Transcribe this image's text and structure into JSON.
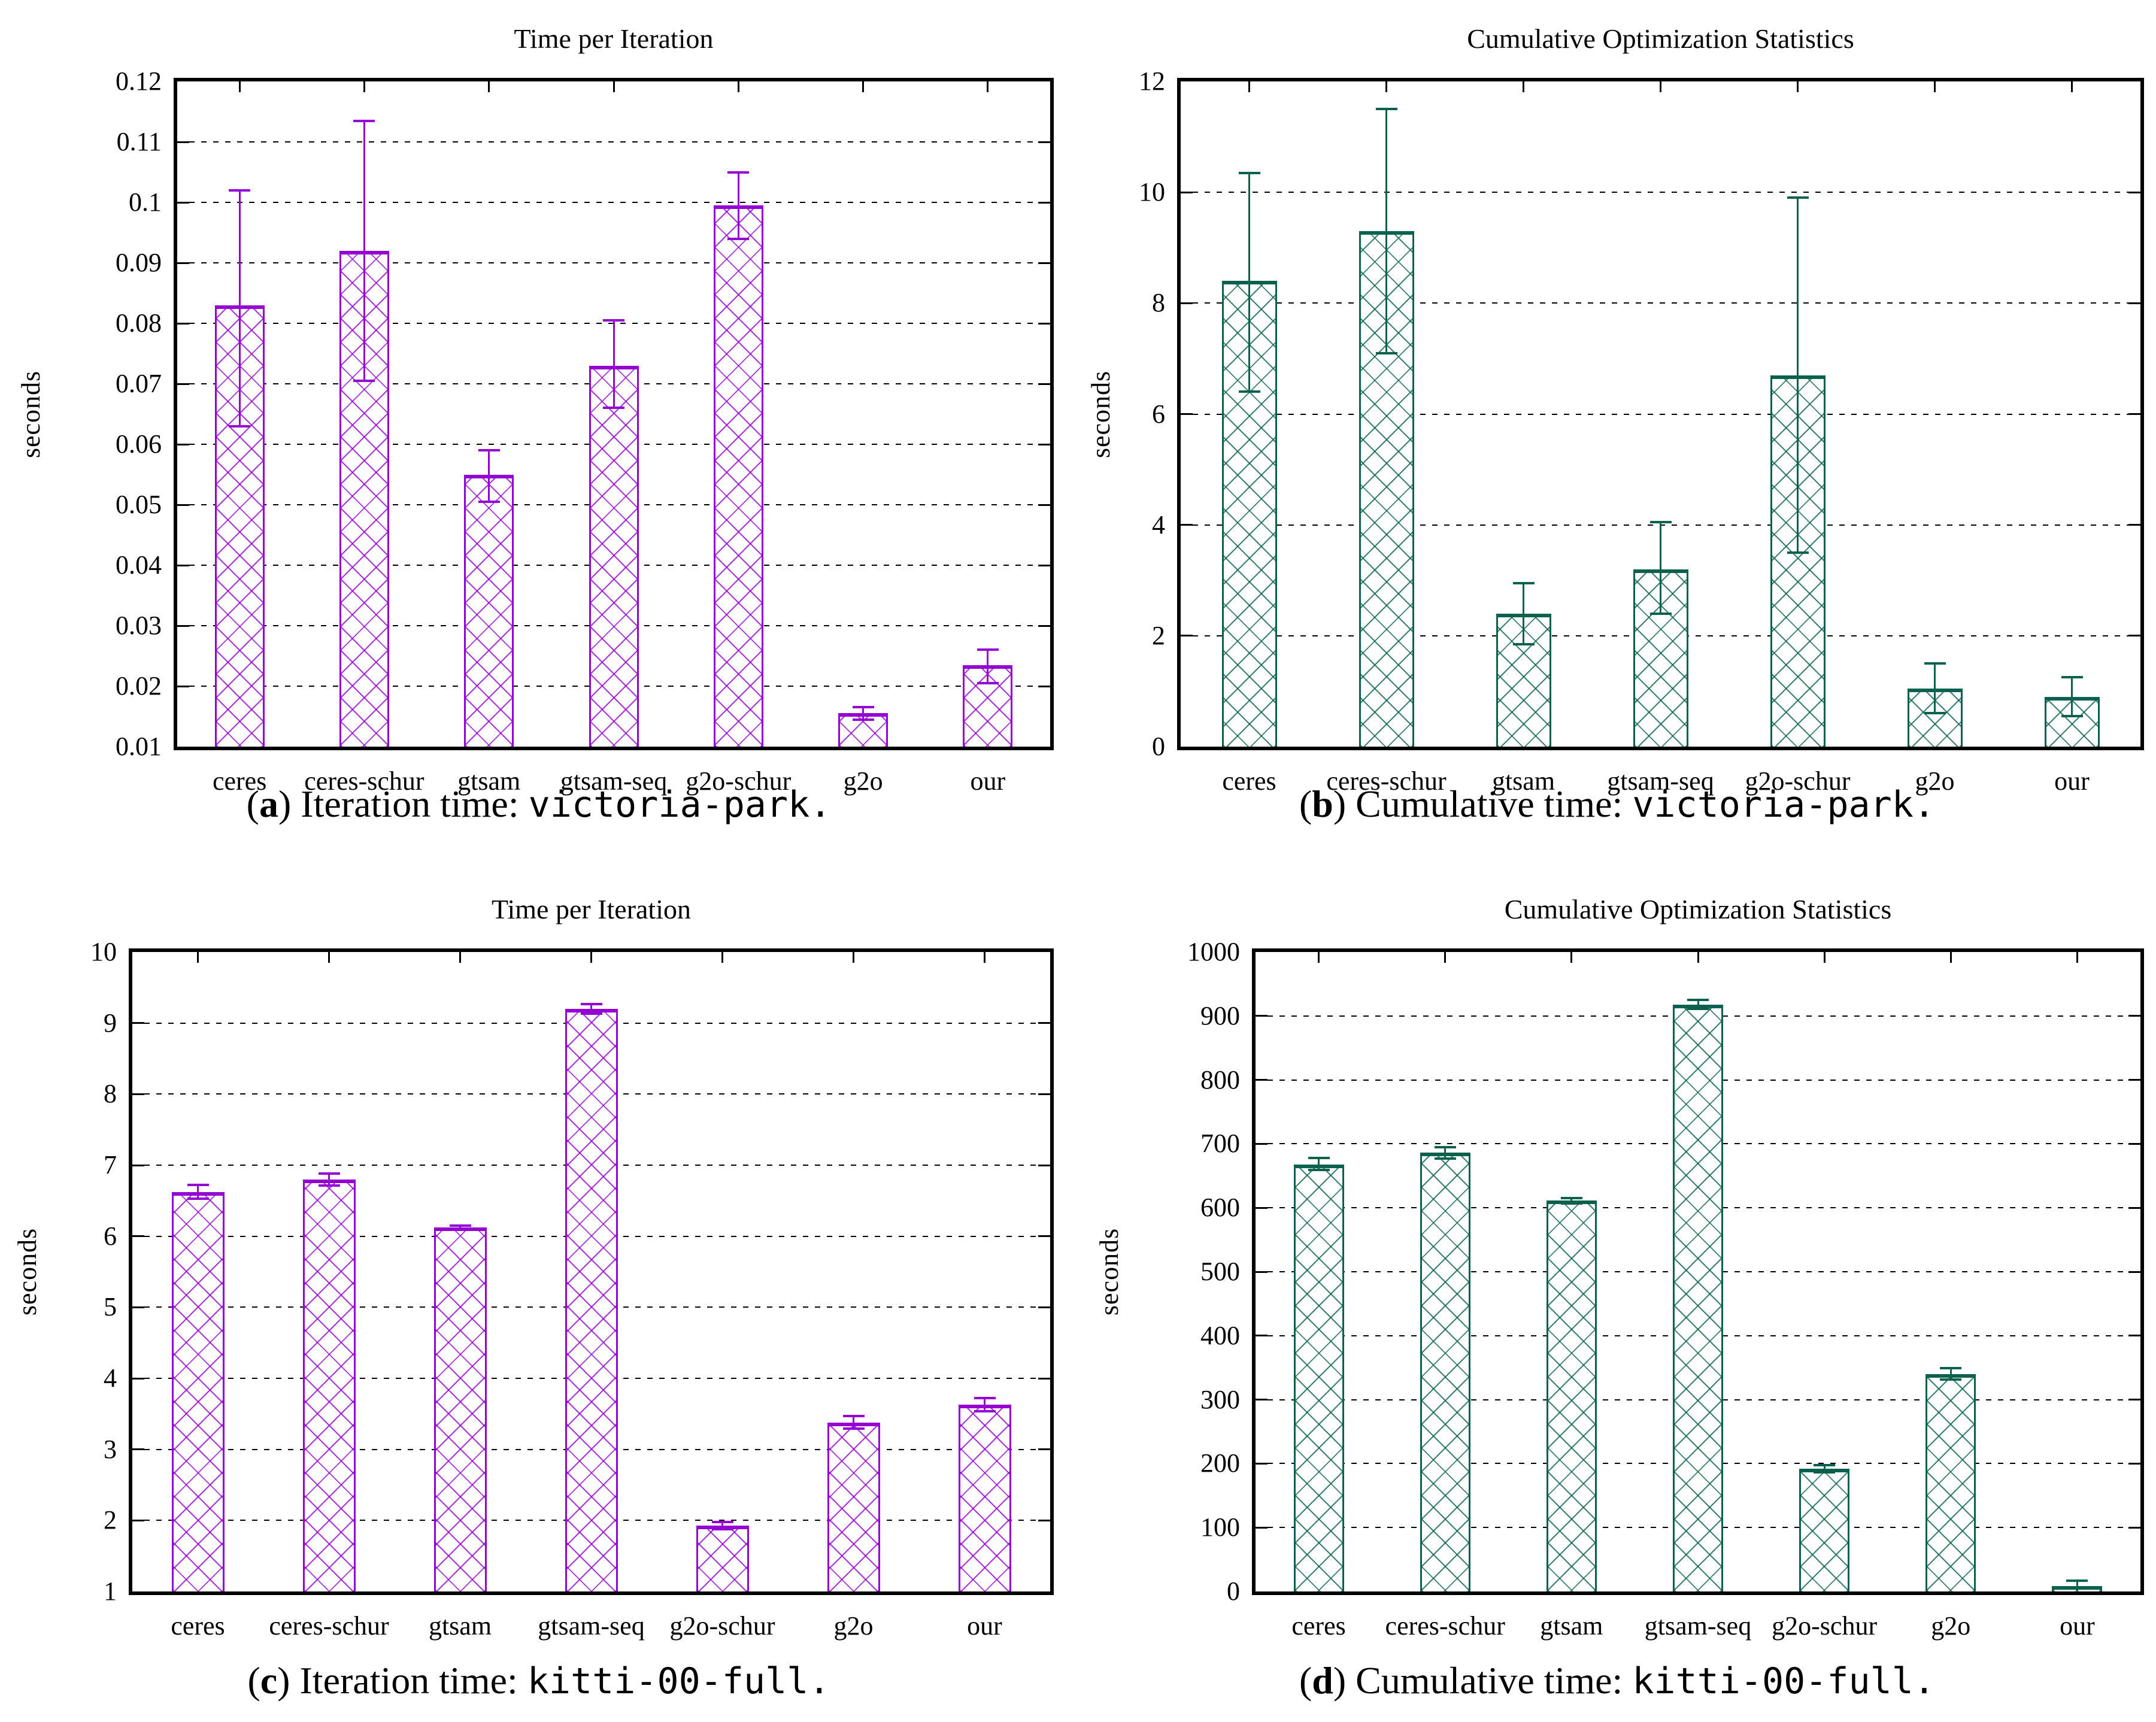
{
  "chart_data": [
    {
      "id": "a",
      "type": "bar",
      "title": "Time per Iteration",
      "ylabel": "seconds",
      "bar_color": "#9400D3",
      "ylim": [
        0.01,
        0.12
      ],
      "yticks": [
        0.01,
        0.02,
        0.03,
        0.04,
        0.05,
        0.06,
        0.07,
        0.08,
        0.09,
        0.1,
        0.11,
        0.12
      ],
      "ytick_labels": [
        "0.01",
        "0.02",
        "0.03",
        "0.04",
        "0.05",
        "0.06",
        "0.07",
        "0.08",
        "0.09",
        "0.1",
        "0.11",
        "0.12"
      ],
      "grid": true,
      "legend": "none",
      "categories": [
        "ceres",
        "ceres-schur",
        "gtsam",
        "gtsam-seq",
        "g2o-schur",
        "g2o",
        "our"
      ],
      "values": [
        0.083,
        0.092,
        0.055,
        0.073,
        0.0995,
        0.0155,
        0.0235
      ],
      "err_low": [
        0.063,
        0.0705,
        0.0505,
        0.066,
        0.094,
        0.0145,
        0.0205
      ],
      "err_high": [
        0.102,
        0.1135,
        0.059,
        0.0805,
        0.105,
        0.0165,
        0.026
      ],
      "caption": {
        "label": "a",
        "text": "Iteration time:",
        "dataset": "victoria-park."
      }
    },
    {
      "id": "b",
      "type": "bar",
      "title": "Cumulative Optimization Statistics",
      "ylabel": "seconds",
      "bar_color": "#0A614D",
      "ylim": [
        0,
        12
      ],
      "yticks": [
        0,
        2,
        4,
        6,
        8,
        10,
        12
      ],
      "ytick_labels": [
        "0",
        "2",
        "4",
        "6",
        "8",
        "10",
        "12"
      ],
      "grid": true,
      "legend": "none",
      "categories": [
        "ceres",
        "ceres-schur",
        "gtsam",
        "gtsam-seq",
        "g2o-schur",
        "g2o",
        "our"
      ],
      "values": [
        8.4,
        9.3,
        2.4,
        3.2,
        6.7,
        1.05,
        0.9
      ],
      "err_low": [
        6.4,
        7.1,
        1.85,
        2.4,
        3.5,
        0.6,
        0.55
      ],
      "err_high": [
        10.35,
        11.5,
        2.95,
        4.05,
        9.9,
        1.5,
        1.25
      ],
      "caption": {
        "label": "b",
        "text": "Cumulative time:",
        "dataset": "victoria-park."
      }
    },
    {
      "id": "c",
      "type": "bar",
      "title": "Time per Iteration",
      "ylabel": "seconds",
      "bar_color": "#9400D3",
      "ylim": [
        1,
        10
      ],
      "yticks": [
        1,
        2,
        3,
        4,
        5,
        6,
        7,
        8,
        9,
        10
      ],
      "ytick_labels": [
        "1",
        "2",
        "3",
        "4",
        "5",
        "6",
        "7",
        "8",
        "9",
        "10"
      ],
      "grid": true,
      "legend": "none",
      "categories": [
        "ceres",
        "ceres-schur",
        "gtsam",
        "gtsam-seq",
        "g2o-schur",
        "g2o",
        "our"
      ],
      "values": [
        6.62,
        6.8,
        6.12,
        9.2,
        1.93,
        3.38,
        3.63
      ],
      "err_low": [
        6.53,
        6.71,
        6.09,
        9.13,
        1.88,
        3.29,
        3.54
      ],
      "err_high": [
        6.72,
        6.88,
        6.15,
        9.27,
        1.98,
        3.47,
        3.72
      ],
      "caption": {
        "label": "c",
        "text": "Iteration time:",
        "dataset": "kitti-00-full."
      }
    },
    {
      "id": "d",
      "type": "bar",
      "title": "Cumulative Optimization Statistics",
      "ylabel": "seconds",
      "bar_color": "#0A614D",
      "ylim": [
        0,
        1000
      ],
      "yticks": [
        0,
        100,
        200,
        300,
        400,
        500,
        600,
        700,
        800,
        900,
        1000
      ],
      "ytick_labels": [
        "0",
        "100",
        "200",
        "300",
        "400",
        "500",
        "600",
        "700",
        "800",
        "900",
        "1000"
      ],
      "grid": true,
      "legend": "none",
      "categories": [
        "ceres",
        "ceres-schur",
        "gtsam",
        "gtsam-seq",
        "g2o-schur",
        "g2o",
        "our"
      ],
      "values": [
        668,
        686,
        611,
        918,
        192,
        340,
        8
      ],
      "err_low": [
        659,
        677,
        607,
        911,
        186,
        331,
        1
      ],
      "err_high": [
        678,
        695,
        615,
        925,
        198,
        349,
        17
      ],
      "caption": {
        "label": "d",
        "text": "Cumulative time:",
        "dataset": "kitti-00-full."
      }
    }
  ]
}
